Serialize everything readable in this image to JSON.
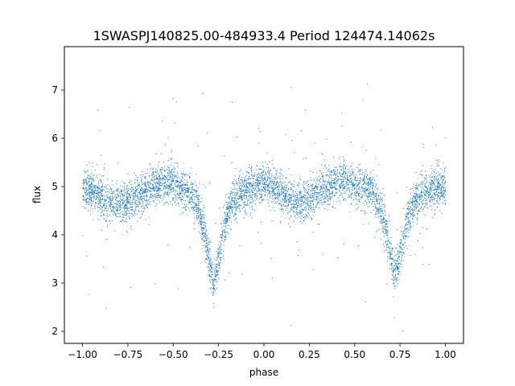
{
  "chart_data": {
    "type": "scatter",
    "title": "1SWASPJ140825.00-484933.4 Period 124474.14062s",
    "xlabel": "phase",
    "ylabel": "flux",
    "xlim": [
      -1.1,
      1.1
    ],
    "ylim": [
      1.75,
      7.9
    ],
    "x_ticks": [
      -1.0,
      -0.75,
      -0.5,
      -0.25,
      0.0,
      0.25,
      0.5,
      0.75,
      1.0
    ],
    "x_tick_labels": [
      "−1.00",
      "−0.75",
      "−0.50",
      "−0.25",
      "0.00",
      "0.25",
      "0.50",
      "0.75",
      "1.00"
    ],
    "y_ticks": [
      2,
      3,
      4,
      5,
      6,
      7
    ],
    "y_tick_labels": [
      "2",
      "3",
      "4",
      "5",
      "6",
      "7"
    ],
    "grid": false,
    "marker_color": "#1f77b4",
    "profile": {
      "baseline_flux": 5.0,
      "primary_eclipse": {
        "phase": -0.28,
        "min_flux": 3.0
      },
      "secondary_eclipse": {
        "phase": 0.72,
        "min_flux": 3.2
      },
      "mid_dips": [
        {
          "phase": -0.82,
          "flux": 4.65
        },
        {
          "phase": 0.18,
          "flux": 4.65
        }
      ],
      "mid_peaks": [
        {
          "phase": -0.55,
          "flux": 5.1
        },
        {
          "phase": 0.42,
          "flux": 5.15
        }
      ]
    },
    "series": [
      {
        "points": [
          [
            -1.0,
            4.9
          ],
          [
            -0.95,
            4.95
          ],
          [
            -0.9,
            4.8
          ],
          [
            -0.85,
            4.7
          ],
          [
            -0.82,
            4.65
          ],
          [
            -0.78,
            4.65
          ],
          [
            -0.72,
            4.75
          ],
          [
            -0.68,
            4.85
          ],
          [
            -0.62,
            5.0
          ],
          [
            -0.55,
            5.1
          ],
          [
            -0.5,
            5.05
          ],
          [
            -0.45,
            4.95
          ],
          [
            -0.4,
            4.85
          ],
          [
            -0.36,
            4.55
          ],
          [
            -0.33,
            4.1
          ],
          [
            -0.31,
            3.6
          ],
          [
            -0.29,
            3.15
          ],
          [
            -0.28,
            3.0
          ],
          [
            -0.27,
            3.1
          ],
          [
            -0.25,
            3.5
          ],
          [
            -0.22,
            4.2
          ],
          [
            -0.18,
            4.7
          ],
          [
            -0.12,
            4.9
          ],
          [
            -0.05,
            5.0
          ],
          [
            0.0,
            5.05
          ],
          [
            0.05,
            5.0
          ],
          [
            0.1,
            4.85
          ],
          [
            0.15,
            4.7
          ],
          [
            0.18,
            4.65
          ],
          [
            0.22,
            4.7
          ],
          [
            0.28,
            4.85
          ],
          [
            0.32,
            4.95
          ],
          [
            0.38,
            5.05
          ],
          [
            0.42,
            5.15
          ],
          [
            0.48,
            5.05
          ],
          [
            0.55,
            4.95
          ],
          [
            0.6,
            4.85
          ],
          [
            0.64,
            4.55
          ],
          [
            0.67,
            4.1
          ],
          [
            0.69,
            3.7
          ],
          [
            0.71,
            3.3
          ],
          [
            0.72,
            3.2
          ],
          [
            0.73,
            3.3
          ],
          [
            0.75,
            3.6
          ],
          [
            0.78,
            4.2
          ],
          [
            0.82,
            4.65
          ],
          [
            0.88,
            4.9
          ],
          [
            0.94,
            5.0
          ],
          [
            1.0,
            5.0
          ]
        ]
      }
    ]
  }
}
